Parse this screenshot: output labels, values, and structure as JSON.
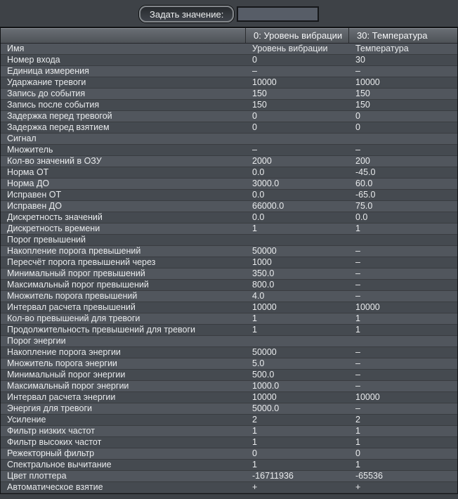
{
  "toolbar": {
    "set_value_button": "Задать значение:",
    "input_value": "",
    "input_placeholder": ""
  },
  "table": {
    "columns": [
      "",
      "0: Уровень вибрации",
      "30: Температура"
    ],
    "rows": [
      {
        "name": "Имя",
        "v1": "Уровень вибрации",
        "v2": "Температура"
      },
      {
        "name": "Номер входа",
        "v1": "0",
        "v2": "30"
      },
      {
        "name": "Единица измерения",
        "v1": "–",
        "v2": "–"
      },
      {
        "name": "Ударжание тревоги",
        "v1": "10000",
        "v2": "10000"
      },
      {
        "name": "Запись до события",
        "v1": "150",
        "v2": "150"
      },
      {
        "name": "Запись после события",
        "v1": "150",
        "v2": "150"
      },
      {
        "name": "Задержка перед тревогой",
        "v1": "0",
        "v2": "0"
      },
      {
        "name": "Задержка перед взятием",
        "v1": "0",
        "v2": "0"
      },
      {
        "name": "Сигнал",
        "v1": "",
        "v2": ""
      },
      {
        "name": "Множитель",
        "v1": "–",
        "v2": "–"
      },
      {
        "name": "Кол-во значений в ОЗУ",
        "v1": "2000",
        "v2": "200"
      },
      {
        "name": "Норма ОТ",
        "v1": "0.0",
        "v2": "-45.0"
      },
      {
        "name": "Норма ДО",
        "v1": "3000.0",
        "v2": "60.0"
      },
      {
        "name": "Исправен ОТ",
        "v1": "0.0",
        "v2": "-65.0"
      },
      {
        "name": "Исправен ДО",
        "v1": "66000.0",
        "v2": "75.0"
      },
      {
        "name": "Дискретность значений",
        "v1": "0.0",
        "v2": "0.0"
      },
      {
        "name": "Дискретность времени",
        "v1": "1",
        "v2": "1"
      },
      {
        "name": "Порог превышений",
        "v1": "",
        "v2": ""
      },
      {
        "name": "Накопление порога превышений",
        "v1": "50000",
        "v2": "–"
      },
      {
        "name": "Пересчёт порога превышений через",
        "v1": "1000",
        "v2": "–"
      },
      {
        "name": "Минимальный порог превышений",
        "v1": "350.0",
        "v2": "–"
      },
      {
        "name": "Максимальный порог превышений",
        "v1": "800.0",
        "v2": "–"
      },
      {
        "name": "Множитель порога превышений",
        "v1": "4.0",
        "v2": "–"
      },
      {
        "name": "Интервал расчета превышений",
        "v1": "10000",
        "v2": "10000"
      },
      {
        "name": "Кол-во превышений для тревоги",
        "v1": "1",
        "v2": "1"
      },
      {
        "name": "Продолжительность превышений для тревоги",
        "v1": "1",
        "v2": "1"
      },
      {
        "name": "Порог энергии",
        "v1": "",
        "v2": ""
      },
      {
        "name": "Накопление порога энергии",
        "v1": "50000",
        "v2": "–"
      },
      {
        "name": "Множитель порога энергии",
        "v1": "5.0",
        "v2": "–"
      },
      {
        "name": "Минимальный порог энергии",
        "v1": "500.0",
        "v2": "–"
      },
      {
        "name": "Максимальный порог энергии",
        "v1": "1000.0",
        "v2": "–"
      },
      {
        "name": "Интервал расчета энергии",
        "v1": "10000",
        "v2": "10000"
      },
      {
        "name": "Энергия для тревоги",
        "v1": "5000.0",
        "v2": "–"
      },
      {
        "name": "Усиление",
        "v1": "2",
        "v2": "2"
      },
      {
        "name": "Фильтр низких частот",
        "v1": "1",
        "v2": "1"
      },
      {
        "name": "Фильтр высоких частот",
        "v1": "1",
        "v2": "1"
      },
      {
        "name": "Режекторный фильтр",
        "v1": "0",
        "v2": "0"
      },
      {
        "name": "Спектральное вычитание",
        "v1": "1",
        "v2": "1"
      },
      {
        "name": "Цвет плоттера",
        "v1": "-16711936",
        "v2": "-65536"
      },
      {
        "name": "Автоматическое взятие",
        "v1": "+",
        "v2": "+"
      }
    ]
  },
  "colors": {
    "page_bg": "#3e4247",
    "row_light": "#51565d",
    "row_dark": "#454a50",
    "header_top": "#6a6f75",
    "header_bottom": "#4e5257",
    "text": "#e9ebed",
    "input_bg": "#575d67"
  }
}
